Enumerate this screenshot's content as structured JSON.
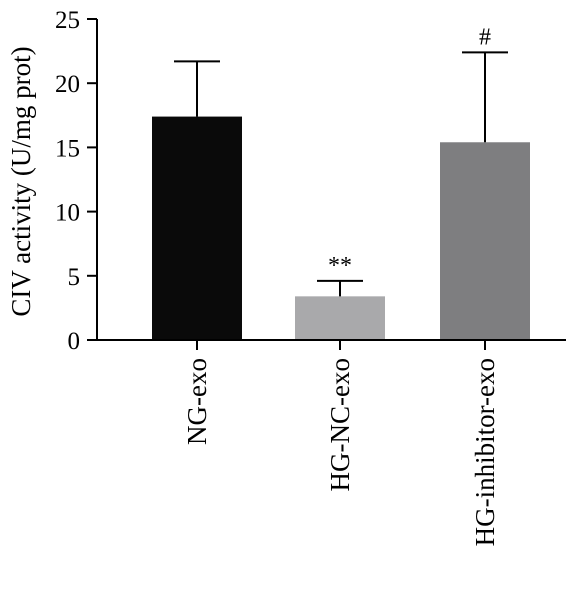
{
  "chart_data": {
    "type": "bar",
    "title": "",
    "xlabel": "",
    "ylabel": "CIV activity (U/mg prot)",
    "ylim": [
      0,
      25
    ],
    "yticks": [
      0,
      5,
      10,
      15,
      20,
      25
    ],
    "categories": [
      "NG-exo",
      "HG-NC-exo",
      "HG-inhibitor-exo"
    ],
    "values": [
      17.4,
      3.4,
      15.4
    ],
    "error_upper": [
      21.7,
      4.6,
      22.4
    ],
    "significance": [
      "",
      "**",
      "#"
    ],
    "bar_colors": [
      "#0a0a0a",
      "#a9a9ab",
      "#7e7e80"
    ],
    "grid": false,
    "legend": "none"
  }
}
